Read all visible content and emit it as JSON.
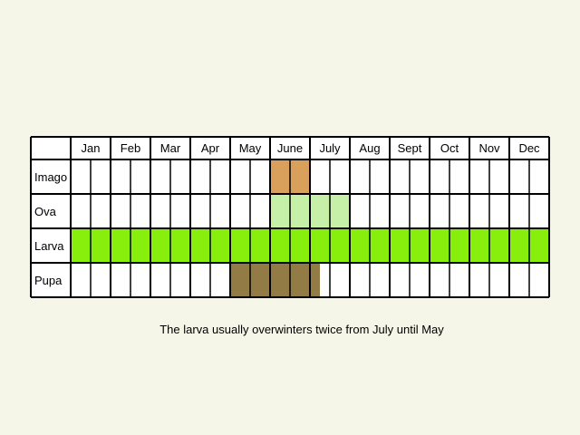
{
  "chart_data": {
    "type": "table",
    "months": [
      "Jan",
      "Feb",
      "Mar",
      "Apr",
      "May",
      "June",
      "July",
      "Aug",
      "Sept",
      "Oct",
      "Nov",
      "Dec"
    ],
    "half_months_per_month": 2,
    "stages": [
      {
        "name": "Imago",
        "color": "#d9a05b",
        "active_half_months": [
          [
            6,
            1
          ],
          [
            6,
            2
          ]
        ]
      },
      {
        "name": "Ova",
        "color": "#c6f0a8",
        "active_half_months": [
          [
            6,
            1
          ],
          [
            6,
            2
          ],
          [
            7,
            1
          ],
          [
            7,
            2
          ]
        ]
      },
      {
        "name": "Larva",
        "color": "#88ee0c",
        "active_half_months": [
          [
            1,
            1
          ],
          [
            1,
            2
          ],
          [
            2,
            1
          ],
          [
            2,
            2
          ],
          [
            3,
            1
          ],
          [
            3,
            2
          ],
          [
            4,
            1
          ],
          [
            4,
            2
          ],
          [
            5,
            1
          ],
          [
            5,
            2
          ],
          [
            6,
            1
          ],
          [
            6,
            2
          ],
          [
            7,
            1
          ],
          [
            7,
            2
          ],
          [
            8,
            1
          ],
          [
            8,
            2
          ],
          [
            9,
            1
          ],
          [
            9,
            2
          ],
          [
            10,
            1
          ],
          [
            10,
            2
          ],
          [
            11,
            1
          ],
          [
            11,
            2
          ],
          [
            12,
            1
          ],
          [
            12,
            2
          ]
        ]
      },
      {
        "name": "Pupa",
        "color": "#937b45",
        "active_half_months": [
          [
            5,
            1
          ],
          [
            5,
            2
          ],
          [
            6,
            1
          ],
          [
            6,
            2
          ]
        ],
        "partial": [
          {
            "half_month": [
              7,
              1
            ],
            "fraction": 0.5
          }
        ]
      }
    ],
    "background": "#f6f6e8",
    "cell_color": "#ffffff"
  },
  "caption": "The larva usually overwinters twice from July until May"
}
